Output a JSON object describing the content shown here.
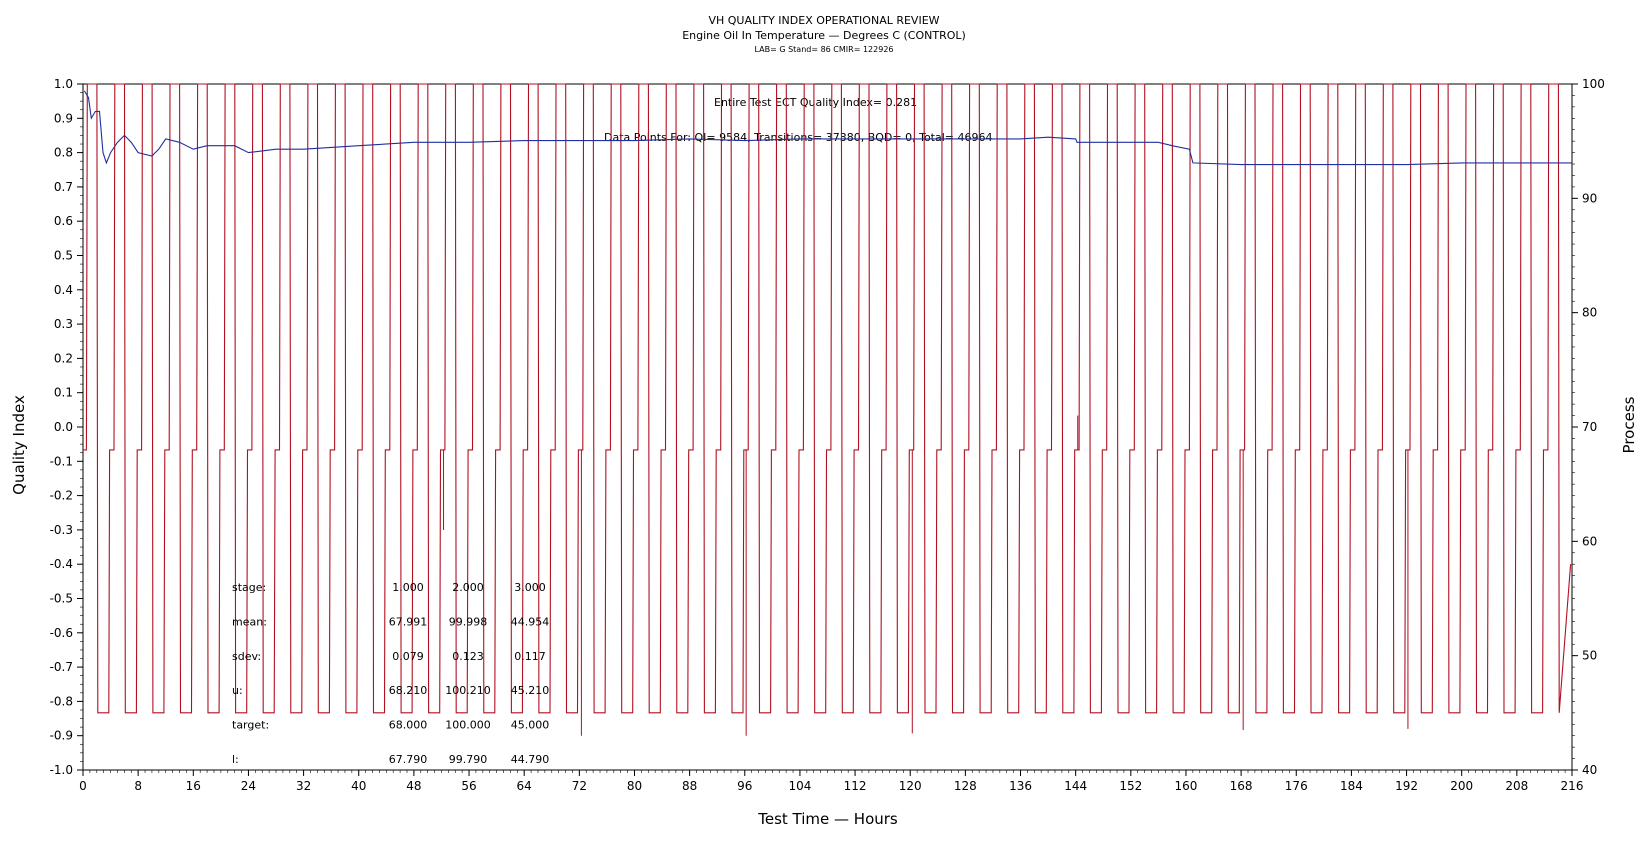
{
  "chart_data": {
    "type": "line",
    "title": "VH QUALITY INDEX OPERATIONAL REVIEW",
    "subtitle": "Engine Oil In Temperature — Degrees C (CONTROL)",
    "subtitle2": "LAB= G Stand= 86 CMIR= 122926",
    "xlabel": "Test Time — Hours",
    "ylabel": "Quality Index",
    "y2label": "Process",
    "xlim": [
      0,
      216
    ],
    "ylim": [
      -1.0,
      1.0
    ],
    "y2lim": [
      40,
      100
    ],
    "x_ticks": [
      "0",
      "8",
      "16",
      "24",
      "32",
      "40",
      "48",
      "56",
      "64",
      "72",
      "80",
      "88",
      "96",
      "104",
      "112",
      "120",
      "128",
      "136",
      "144",
      "152",
      "160",
      "168",
      "176",
      "184",
      "192",
      "200",
      "208",
      "216"
    ],
    "y_ticks": [
      "1.0",
      "0.9",
      "0.8",
      "0.7",
      "0.6",
      "0.5",
      "0.4",
      "0.3",
      "0.2",
      "0.1",
      "0.0",
      "-0.1",
      "-0.2",
      "-0.3",
      "-0.4",
      "-0.5",
      "-0.6",
      "-0.7",
      "-0.8",
      "-0.9",
      "-1.0"
    ],
    "y2_ticks": [
      "100",
      "90",
      "80",
      "70",
      "60",
      "50",
      "40"
    ],
    "annotations": [
      "Entire Test ECT Quality Index=   0.281",
      "Data Points For: QI=   9584, Transitions= 37380, BQD=      0, Total= 46964"
    ],
    "stats_table": {
      "rows": [
        {
          "label": "stage:",
          "values": [
            "1.000",
            "2.000",
            "3.000"
          ]
        },
        {
          "label": "mean:",
          "values": [
            "67.991",
            "99.998",
            "44.954"
          ]
        },
        {
          "label": "sdev:",
          "values": [
            "0.079",
            "0.123",
            "0.117"
          ]
        },
        {
          "label": "u:",
          "values": [
            "68.210",
            "100.210",
            "45.210"
          ]
        },
        {
          "label": "target:",
          "values": [
            "68.000",
            "100.000",
            "45.000"
          ]
        },
        {
          "label": "l:",
          "values": [
            "67.790",
            "99.790",
            "44.790"
          ]
        }
      ]
    },
    "series": [
      {
        "axis": "right",
        "color": "#b01020",
        "cycle_hours": 4,
        "cycle_start_hour": 0.5,
        "stage_levels": [
          68,
          100,
          45
        ],
        "stage_durations_hours": [
          1.0,
          1.4,
          1.6
        ],
        "glitches": [
          {
            "x": 96.2,
            "y": 43.0
          },
          {
            "x": 120.3,
            "y": 43.2
          },
          {
            "x": 144.3,
            "y": 71.0
          },
          {
            "x": 168.3,
            "y": 43.5
          },
          {
            "x": 192.2,
            "y": 43.6
          },
          {
            "x": 72.3,
            "y": 43.0
          },
          {
            "x": 52.3,
            "y": 61.0
          }
        ],
        "end_value": 58
      },
      {
        "axis": "left",
        "color": "#2030a0",
        "x": [
          0.2,
          0.8,
          1.2,
          1.8,
          2.4,
          2.9,
          3.4,
          4.0,
          5.0,
          6.0,
          7.0,
          8.0,
          10.0,
          11.0,
          12.0,
          14.0,
          16.0,
          18.0,
          20.0,
          22.0,
          24.0,
          28.0,
          32.0,
          40.0,
          48.0,
          56.0,
          64.0,
          72.0,
          80.0,
          88.0,
          96.0,
          104.0,
          112.0,
          120.0,
          128.0,
          136.0,
          140.0,
          144.0,
          144.2,
          148.0,
          152.0,
          156.0,
          158.0,
          160.5,
          161.0,
          168.0,
          176.0,
          184.0,
          192.0,
          200.0,
          208.0,
          216.0
        ],
        "y": [
          0.98,
          0.96,
          0.9,
          0.92,
          0.92,
          0.8,
          0.77,
          0.8,
          0.83,
          0.85,
          0.83,
          0.8,
          0.79,
          0.81,
          0.84,
          0.83,
          0.81,
          0.82,
          0.82,
          0.82,
          0.8,
          0.81,
          0.81,
          0.82,
          0.83,
          0.83,
          0.835,
          0.835,
          0.835,
          0.84,
          0.835,
          0.84,
          0.84,
          0.84,
          0.84,
          0.84,
          0.845,
          0.84,
          0.83,
          0.83,
          0.83,
          0.83,
          0.82,
          0.81,
          0.77,
          0.765,
          0.765,
          0.765,
          0.765,
          0.77,
          0.77,
          0.77
        ]
      }
    ]
  }
}
